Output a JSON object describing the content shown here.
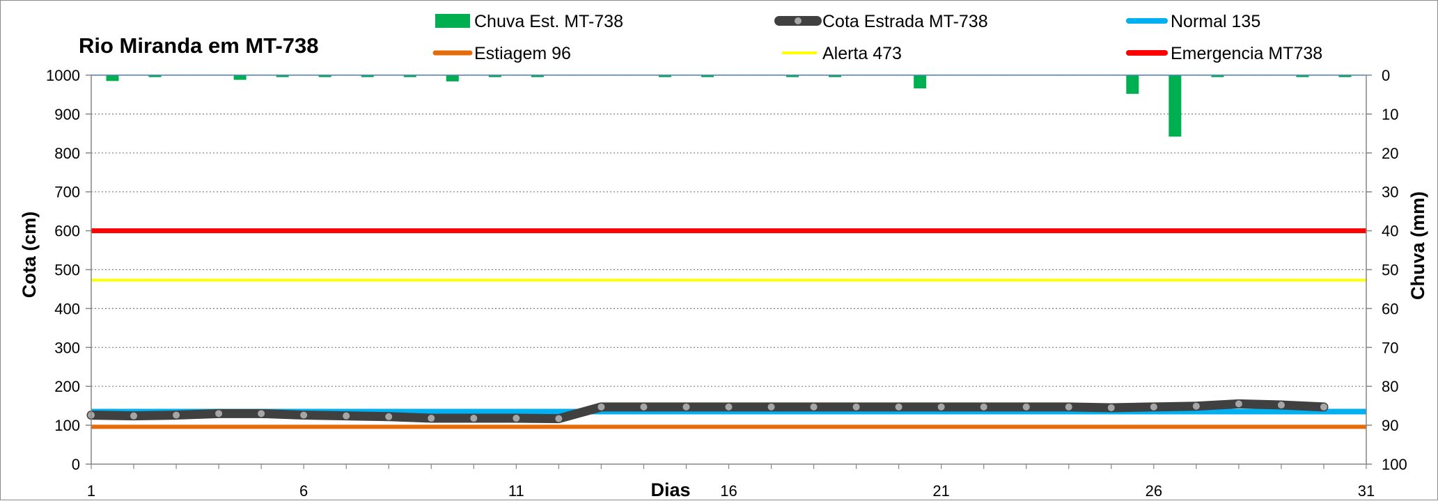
{
  "chart_data": {
    "type": "line",
    "title": "Rio Miranda  em MT-738",
    "xlabel": "Dias",
    "ylabel": "Cota    (cm)",
    "y2label": "Chuva (mm)",
    "xlim": [
      1,
      31
    ],
    "ylim": [
      0,
      1000
    ],
    "y2lim": [
      0,
      100
    ],
    "y2_inverted": true,
    "x_ticks": [
      "1",
      "6",
      "11",
      "16",
      "21",
      "26",
      "31"
    ],
    "y_ticks": [
      "0",
      "100",
      "200",
      "300",
      "400",
      "500",
      "600",
      "700",
      "800",
      "900",
      "1000"
    ],
    "y2_ticks": [
      "100",
      "90",
      "80",
      "70",
      "60",
      "50",
      "40",
      "30",
      "20",
      "10",
      "0"
    ],
    "grid": "horizontal dotted",
    "legend_position": "top",
    "rain": {
      "name": "Chuva Est. MT-738",
      "color": "#00b050",
      "x": [
        1.5,
        2.5,
        4.5,
        5.5,
        6.5,
        7.5,
        8.5,
        9.5,
        10.5,
        11.5,
        14.5,
        15.5,
        17.5,
        18.5,
        20.5,
        25.5,
        26.5,
        27.5,
        29.5,
        30.5
      ],
      "values": [
        1.5,
        0.5,
        1.2,
        0.5,
        0.5,
        0.5,
        0.5,
        1.6,
        0.5,
        0.5,
        0.5,
        0.5,
        0.5,
        0.5,
        3.4,
        4.8,
        15.8,
        0.5,
        0.5,
        0.5
      ]
    },
    "cota": {
      "name": "Cota Estrada MT-738",
      "color": "#404040",
      "x": [
        1,
        2,
        3,
        4,
        5,
        6,
        7,
        8,
        9,
        10,
        11,
        12,
        13,
        14,
        15,
        16,
        17,
        18,
        19,
        20,
        21,
        22,
        23,
        24,
        25,
        26,
        27,
        28,
        29,
        30
      ],
      "values": [
        126,
        124,
        126,
        130,
        130,
        126,
        124,
        122,
        118,
        118,
        118,
        117,
        147,
        147,
        147,
        147,
        147,
        147,
        147,
        147,
        147,
        147,
        147,
        147,
        145,
        147,
        149,
        155,
        152,
        147
      ]
    },
    "reference_lines": [
      {
        "name": "Normal  135",
        "value": 135,
        "color": "#00b0f0",
        "width": 8
      },
      {
        "name": "Estiagem 96",
        "value": 96,
        "color": "#e46c0a",
        "width": 6
      },
      {
        "name": "Alerta 473",
        "value": 473,
        "color": "#ffff00",
        "width": 4
      },
      {
        "name": "Emergencia MT738",
        "value": 600,
        "color": "#ff0000",
        "width": 7
      }
    ]
  }
}
